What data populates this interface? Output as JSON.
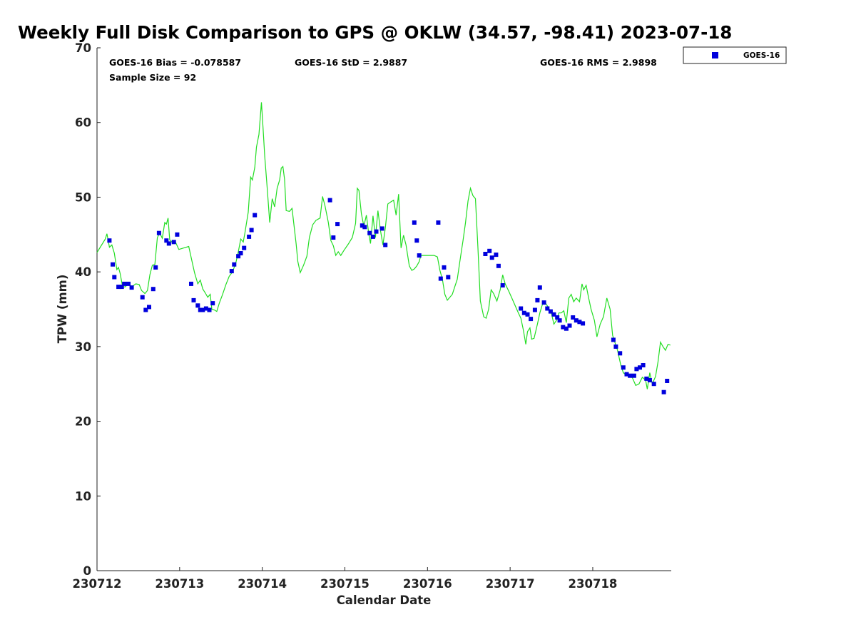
{
  "chart_data": {
    "type": "scatter",
    "title": "Weekly Full Disk Comparison to GPS @ OKLW (34.57, -98.41) 2023-07-18",
    "xlabel": "Calendar Date",
    "ylabel": "TPW (mm)",
    "xlim": [
      0,
      6.95
    ],
    "ylim": [
      0,
      70
    ],
    "x_unit": "days from 230712",
    "y_ticks": [
      "0",
      "10",
      "20",
      "30",
      "40",
      "50",
      "60",
      "70"
    ],
    "x_ticks": [
      "230712",
      "230713",
      "230714",
      "230715",
      "230716",
      "230717",
      "230718"
    ],
    "stats": {
      "bias": "GOES-16 Bias = -0.078587",
      "std": "GOES-16 StD = 2.9887",
      "rms": "GOES-16 RMS = 2.9898",
      "sample": "Sample Size = 92"
    },
    "legend": {
      "label": "GOES-16",
      "placement": "outside-top-right"
    },
    "colors": {
      "goes": "#0000dd",
      "gps": "#22dd22"
    },
    "series": [
      {
        "name": "GOES-16",
        "kind": "scatter",
        "points": [
          [
            0.15,
            44.2
          ],
          [
            0.19,
            41.0
          ],
          [
            0.21,
            39.3
          ],
          [
            0.26,
            38.0
          ],
          [
            0.3,
            38.0
          ],
          [
            0.33,
            38.4
          ],
          [
            0.38,
            38.4
          ],
          [
            0.42,
            37.9
          ],
          [
            0.55,
            36.6
          ],
          [
            0.59,
            34.9
          ],
          [
            0.63,
            35.3
          ],
          [
            0.68,
            37.7
          ],
          [
            0.71,
            40.6
          ],
          [
            0.75,
            45.2
          ],
          [
            0.84,
            44.2
          ],
          [
            0.87,
            43.8
          ],
          [
            0.93,
            44.0
          ],
          [
            0.97,
            45.0
          ],
          [
            1.14,
            38.4
          ],
          [
            1.17,
            36.2
          ],
          [
            1.22,
            35.5
          ],
          [
            1.25,
            34.9
          ],
          [
            1.28,
            34.9
          ],
          [
            1.32,
            35.1
          ],
          [
            1.36,
            34.9
          ],
          [
            1.4,
            35.8
          ],
          [
            1.63,
            40.1
          ],
          [
            1.66,
            41.0
          ],
          [
            1.71,
            42.1
          ],
          [
            1.74,
            42.5
          ],
          [
            1.78,
            43.2
          ],
          [
            1.84,
            44.7
          ],
          [
            1.87,
            45.6
          ],
          [
            1.91,
            47.6
          ],
          [
            2.82,
            49.6
          ],
          [
            2.86,
            44.6
          ],
          [
            2.91,
            46.4
          ],
          [
            3.21,
            46.2
          ],
          [
            3.24,
            46.0
          ],
          [
            3.3,
            45.2
          ],
          [
            3.34,
            44.7
          ],
          [
            3.38,
            45.4
          ],
          [
            3.45,
            45.8
          ],
          [
            3.49,
            43.6
          ],
          [
            3.84,
            46.6
          ],
          [
            3.87,
            44.2
          ],
          [
            3.9,
            42.2
          ],
          [
            4.13,
            46.6
          ],
          [
            4.16,
            39.1
          ],
          [
            4.2,
            40.6
          ],
          [
            4.25,
            39.3
          ],
          [
            4.7,
            42.4
          ],
          [
            4.75,
            42.8
          ],
          [
            4.78,
            41.9
          ],
          [
            4.83,
            42.3
          ],
          [
            4.86,
            40.8
          ],
          [
            4.91,
            38.2
          ],
          [
            5.13,
            35.1
          ],
          [
            5.17,
            34.5
          ],
          [
            5.21,
            34.3
          ],
          [
            5.25,
            33.7
          ],
          [
            5.3,
            34.9
          ],
          [
            5.33,
            36.2
          ],
          [
            5.36,
            37.9
          ],
          [
            5.41,
            35.9
          ],
          [
            5.45,
            35.1
          ],
          [
            5.49,
            34.7
          ],
          [
            5.53,
            34.3
          ],
          [
            5.57,
            33.9
          ],
          [
            5.6,
            33.5
          ],
          [
            5.64,
            32.6
          ],
          [
            5.68,
            32.4
          ],
          [
            5.72,
            32.8
          ],
          [
            5.76,
            33.9
          ],
          [
            5.8,
            33.5
          ],
          [
            5.84,
            33.3
          ],
          [
            5.88,
            33.1
          ],
          [
            6.25,
            30.9
          ],
          [
            6.28,
            30.0
          ],
          [
            6.33,
            29.1
          ],
          [
            6.37,
            27.2
          ],
          [
            6.41,
            26.3
          ],
          [
            6.45,
            26.1
          ],
          [
            6.5,
            26.1
          ],
          [
            6.53,
            27.0
          ],
          [
            6.57,
            27.2
          ],
          [
            6.61,
            27.5
          ],
          [
            6.65,
            25.7
          ],
          [
            6.69,
            25.5
          ],
          [
            6.74,
            25.0
          ],
          [
            6.86,
            23.9
          ],
          [
            6.9,
            25.4
          ]
        ]
      },
      {
        "name": "GPS",
        "kind": "line",
        "points": [
          [
            0.0,
            42.6
          ],
          [
            0.05,
            43.5
          ],
          [
            0.1,
            44.4
          ],
          [
            0.12,
            45.1
          ],
          [
            0.15,
            43.3
          ],
          [
            0.18,
            43.6
          ],
          [
            0.21,
            42.5
          ],
          [
            0.24,
            40.3
          ],
          [
            0.26,
            40.6
          ],
          [
            0.28,
            39.8
          ],
          [
            0.31,
            38.0
          ],
          [
            0.34,
            38.0
          ],
          [
            0.38,
            38.4
          ],
          [
            0.42,
            38.0
          ],
          [
            0.47,
            38.4
          ],
          [
            0.51,
            38.3
          ],
          [
            0.54,
            37.5
          ],
          [
            0.58,
            37.1
          ],
          [
            0.61,
            37.5
          ],
          [
            0.64,
            39.6
          ],
          [
            0.67,
            40.9
          ],
          [
            0.7,
            41.0
          ],
          [
            0.73,
            44.6
          ],
          [
            0.76,
            45.2
          ],
          [
            0.79,
            44.5
          ],
          [
            0.82,
            46.6
          ],
          [
            0.84,
            46.4
          ],
          [
            0.86,
            47.2
          ],
          [
            0.88,
            44.3
          ],
          [
            0.92,
            43.8
          ],
          [
            0.95,
            44.0
          ],
          [
            0.99,
            43.0
          ],
          [
            1.05,
            43.2
          ],
          [
            1.11,
            43.4
          ],
          [
            1.15,
            41.4
          ],
          [
            1.18,
            39.9
          ],
          [
            1.22,
            38.4
          ],
          [
            1.25,
            38.9
          ],
          [
            1.28,
            37.7
          ],
          [
            1.31,
            37.2
          ],
          [
            1.34,
            36.6
          ],
          [
            1.37,
            37.0
          ],
          [
            1.39,
            35.0
          ],
          [
            1.42,
            34.9
          ],
          [
            1.45,
            34.7
          ],
          [
            1.48,
            35.8
          ],
          [
            1.52,
            37.0
          ],
          [
            1.56,
            38.3
          ],
          [
            1.6,
            39.4
          ],
          [
            1.64,
            40.0
          ],
          [
            1.68,
            41.2
          ],
          [
            1.71,
            42.7
          ],
          [
            1.74,
            44.4
          ],
          [
            1.77,
            44.0
          ],
          [
            1.79,
            45.2
          ],
          [
            1.83,
            48.0
          ],
          [
            1.86,
            52.7
          ],
          [
            1.88,
            52.3
          ],
          [
            1.91,
            54.0
          ],
          [
            1.93,
            56.7
          ],
          [
            1.96,
            58.4
          ],
          [
            1.99,
            62.7
          ],
          [
            2.01,
            59.2
          ],
          [
            2.03,
            55.5
          ],
          [
            2.06,
            51.2
          ],
          [
            2.09,
            46.6
          ],
          [
            2.12,
            49.8
          ],
          [
            2.15,
            48.7
          ],
          [
            2.18,
            51.2
          ],
          [
            2.21,
            52.3
          ],
          [
            2.23,
            53.9
          ],
          [
            2.25,
            54.1
          ],
          [
            2.27,
            52.4
          ],
          [
            2.29,
            48.2
          ],
          [
            2.33,
            48.1
          ],
          [
            2.36,
            48.5
          ],
          [
            2.38,
            46.6
          ],
          [
            2.41,
            43.8
          ],
          [
            2.43,
            41.4
          ],
          [
            2.46,
            39.9
          ],
          [
            2.5,
            40.9
          ],
          [
            2.54,
            42.1
          ],
          [
            2.57,
            44.6
          ],
          [
            2.61,
            46.3
          ],
          [
            2.65,
            46.9
          ],
          [
            2.7,
            47.2
          ],
          [
            2.73,
            50.1
          ],
          [
            2.76,
            48.8
          ],
          [
            2.8,
            46.6
          ],
          [
            2.83,
            44.2
          ],
          [
            2.86,
            43.5
          ],
          [
            2.89,
            42.2
          ],
          [
            2.92,
            42.7
          ],
          [
            2.95,
            42.2
          ],
          [
            2.99,
            42.9
          ],
          [
            3.04,
            43.7
          ],
          [
            3.09,
            44.6
          ],
          [
            3.13,
            46.5
          ],
          [
            3.15,
            51.2
          ],
          [
            3.17,
            50.9
          ],
          [
            3.2,
            47.8
          ],
          [
            3.23,
            46.1
          ],
          [
            3.26,
            47.6
          ],
          [
            3.29,
            45.0
          ],
          [
            3.31,
            43.8
          ],
          [
            3.34,
            47.5
          ],
          [
            3.37,
            44.6
          ],
          [
            3.4,
            48.2
          ],
          [
            3.43,
            45.6
          ],
          [
            3.46,
            43.6
          ],
          [
            3.49,
            45.9
          ],
          [
            3.52,
            49.1
          ],
          [
            3.56,
            49.4
          ],
          [
            3.59,
            49.6
          ],
          [
            3.62,
            47.6
          ],
          [
            3.65,
            50.4
          ],
          [
            3.68,
            43.2
          ],
          [
            3.71,
            44.9
          ],
          [
            3.74,
            43.6
          ],
          [
            3.78,
            40.8
          ],
          [
            3.81,
            40.2
          ],
          [
            3.84,
            40.4
          ],
          [
            3.87,
            40.8
          ],
          [
            3.9,
            41.4
          ],
          [
            3.92,
            42.2
          ],
          [
            3.98,
            42.2
          ],
          [
            4.04,
            42.2
          ],
          [
            4.08,
            42.2
          ],
          [
            4.12,
            42.0
          ],
          [
            4.15,
            40.2
          ],
          [
            4.18,
            39.0
          ],
          [
            4.21,
            37.0
          ],
          [
            4.24,
            36.2
          ],
          [
            4.27,
            36.6
          ],
          [
            4.3,
            37.0
          ],
          [
            4.33,
            38.0
          ],
          [
            4.36,
            39.0
          ],
          [
            4.4,
            42.0
          ],
          [
            4.43,
            44.2
          ],
          [
            4.46,
            46.6
          ],
          [
            4.49,
            49.5
          ],
          [
            4.52,
            51.2
          ],
          [
            4.55,
            50.2
          ],
          [
            4.58,
            49.8
          ],
          [
            4.61,
            43.2
          ],
          [
            4.64,
            36.1
          ],
          [
            4.68,
            34.0
          ],
          [
            4.71,
            33.8
          ],
          [
            4.74,
            35.0
          ],
          [
            4.77,
            37.6
          ],
          [
            4.8,
            37.1
          ],
          [
            4.84,
            36.1
          ],
          [
            4.88,
            37.6
          ],
          [
            4.91,
            39.6
          ],
          [
            4.94,
            38.4
          ],
          [
            4.98,
            37.5
          ],
          [
            5.02,
            36.5
          ],
          [
            5.06,
            35.5
          ],
          [
            5.1,
            34.5
          ],
          [
            5.13,
            33.8
          ],
          [
            5.16,
            32.2
          ],
          [
            5.19,
            30.3
          ],
          [
            5.21,
            32.0
          ],
          [
            5.24,
            32.5
          ],
          [
            5.26,
            31.0
          ],
          [
            5.29,
            31.1
          ],
          [
            5.33,
            33.0
          ],
          [
            5.36,
            34.5
          ],
          [
            5.4,
            36.0
          ],
          [
            5.43,
            35.8
          ],
          [
            5.46,
            35.3
          ],
          [
            5.5,
            34.4
          ],
          [
            5.53,
            33.0
          ],
          [
            5.56,
            33.5
          ],
          [
            5.59,
            34.5
          ],
          [
            5.62,
            34.5
          ],
          [
            5.65,
            34.8
          ],
          [
            5.68,
            33.2
          ],
          [
            5.71,
            36.5
          ],
          [
            5.74,
            37.0
          ],
          [
            5.77,
            36.0
          ],
          [
            5.8,
            36.5
          ],
          [
            5.84,
            36.0
          ],
          [
            5.87,
            38.4
          ],
          [
            5.89,
            37.6
          ],
          [
            5.92,
            38.2
          ],
          [
            5.95,
            36.5
          ],
          [
            5.98,
            35.0
          ],
          [
            6.02,
            33.5
          ],
          [
            6.05,
            31.3
          ],
          [
            6.09,
            33.0
          ],
          [
            6.13,
            34.0
          ],
          [
            6.17,
            36.5
          ],
          [
            6.21,
            35.0
          ],
          [
            6.24,
            31.5
          ],
          [
            6.27,
            30.5
          ],
          [
            6.3,
            29.5
          ],
          [
            6.34,
            27.5
          ],
          [
            6.37,
            26.5
          ],
          [
            6.4,
            26.2
          ],
          [
            6.44,
            26.3
          ],
          [
            6.48,
            25.8
          ],
          [
            6.52,
            24.8
          ],
          [
            6.56,
            25.0
          ],
          [
            6.6,
            25.9
          ],
          [
            6.64,
            25.5
          ],
          [
            6.66,
            24.3
          ],
          [
            6.69,
            26.5
          ],
          [
            6.72,
            25.0
          ],
          [
            6.76,
            26.0
          ],
          [
            6.79,
            28.0
          ],
          [
            6.82,
            30.6
          ],
          [
            6.85,
            30.0
          ],
          [
            6.88,
            29.5
          ],
          [
            6.91,
            30.3
          ],
          [
            6.94,
            30.2
          ]
        ]
      }
    ]
  }
}
